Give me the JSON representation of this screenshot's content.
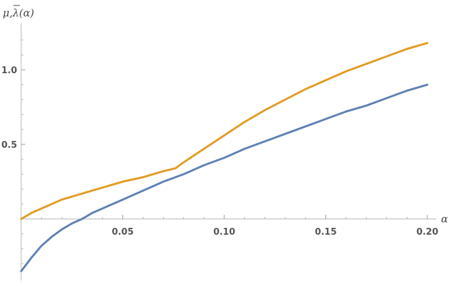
{
  "chart_data": {
    "type": "line",
    "title": "",
    "xlabel": "α",
    "ylabel": "μ,λ(α)",
    "ylabel_bar_char": "λ",
    "xlim": [
      0,
      0.2
    ],
    "ylim": [
      -0.35,
      1.25
    ],
    "x_ticks": [
      {
        "value": 0.05,
        "label": "0.05"
      },
      {
        "value": 0.1,
        "label": "0.10"
      },
      {
        "value": 0.15,
        "label": "0.15"
      },
      {
        "value": 0.2,
        "label": "0.20"
      }
    ],
    "y_ticks": [
      {
        "value": 0.5,
        "label": "0.5"
      },
      {
        "value": 1.0,
        "label": "1.0"
      }
    ],
    "grid": false,
    "legend": "none",
    "series": [
      {
        "color": "#5e81b5",
        "points": [
          [
            0.0,
            -0.35
          ],
          [
            0.005,
            -0.26
          ],
          [
            0.01,
            -0.18
          ],
          [
            0.015,
            -0.12
          ],
          [
            0.02,
            -0.07
          ],
          [
            0.025,
            -0.03
          ],
          [
            0.03,
            0.0
          ],
          [
            0.035,
            0.04
          ],
          [
            0.04,
            0.07
          ],
          [
            0.05,
            0.13
          ],
          [
            0.06,
            0.19
          ],
          [
            0.07,
            0.25
          ],
          [
            0.08,
            0.3
          ],
          [
            0.09,
            0.36
          ],
          [
            0.1,
            0.41
          ],
          [
            0.11,
            0.47
          ],
          [
            0.12,
            0.52
          ],
          [
            0.13,
            0.57
          ],
          [
            0.14,
            0.62
          ],
          [
            0.15,
            0.67
          ],
          [
            0.16,
            0.72
          ],
          [
            0.17,
            0.76
          ],
          [
            0.18,
            0.81
          ],
          [
            0.19,
            0.86
          ],
          [
            0.2,
            0.9
          ]
        ]
      },
      {
        "color": "#e19c24",
        "points": [
          [
            0.0,
            0.0
          ],
          [
            0.005,
            0.04
          ],
          [
            0.01,
            0.07
          ],
          [
            0.015,
            0.1
          ],
          [
            0.02,
            0.13
          ],
          [
            0.03,
            0.17
          ],
          [
            0.04,
            0.21
          ],
          [
            0.05,
            0.25
          ],
          [
            0.06,
            0.28
          ],
          [
            0.07,
            0.32
          ],
          [
            0.076,
            0.34
          ],
          [
            0.08,
            0.38
          ],
          [
            0.09,
            0.47
          ],
          [
            0.1,
            0.56
          ],
          [
            0.11,
            0.65
          ],
          [
            0.12,
            0.73
          ],
          [
            0.13,
            0.8
          ],
          [
            0.14,
            0.87
          ],
          [
            0.15,
            0.93
          ],
          [
            0.16,
            0.99
          ],
          [
            0.17,
            1.04
          ],
          [
            0.18,
            1.09
          ],
          [
            0.19,
            1.14
          ],
          [
            0.2,
            1.18
          ]
        ]
      }
    ]
  }
}
